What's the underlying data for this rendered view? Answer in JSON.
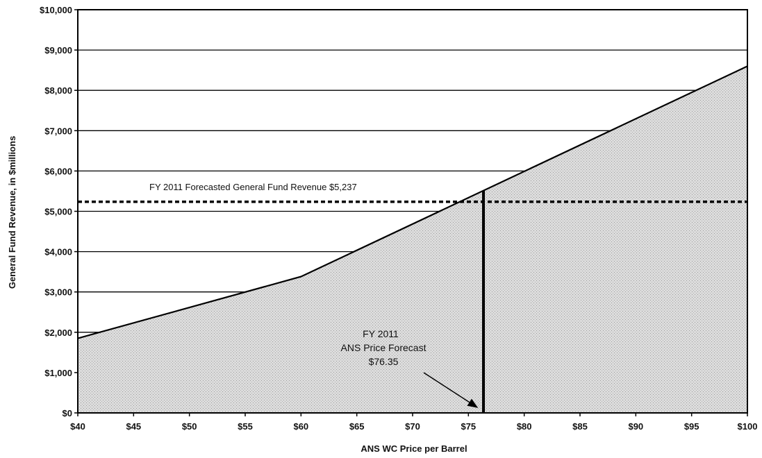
{
  "chart_data": {
    "type": "area",
    "title": "",
    "xlabel": "ANS WC Price per Barrel",
    "ylabel": "General Fund Revenue, in $millions",
    "xlim": [
      40,
      100
    ],
    "ylim": [
      0,
      10000
    ],
    "x_ticks": [
      40,
      45,
      50,
      55,
      60,
      65,
      70,
      75,
      80,
      85,
      90,
      95,
      100
    ],
    "x_tick_labels": [
      "$40",
      "$45",
      "$50",
      "$55",
      "$60",
      "$65",
      "$70",
      "$75",
      "$80",
      "$85",
      "$90",
      "$95",
      "$100"
    ],
    "y_ticks": [
      0,
      1000,
      2000,
      3000,
      4000,
      5000,
      6000,
      7000,
      8000,
      9000,
      10000
    ],
    "y_tick_labels": [
      "$0",
      "$1,000",
      "$2,000",
      "$3,000",
      "$4,000",
      "$5,000",
      "$6,000",
      "$7,000",
      "$8,000",
      "$9,000",
      "$10,000"
    ],
    "grid": true,
    "series": [
      {
        "x": [
          40,
          60,
          100
        ],
        "y": [
          1850,
          3380,
          8600
        ]
      }
    ],
    "forecast_revenue": {
      "label": "FY 2011 Forecasted General Fund Revenue  $5,237",
      "value": 5237
    },
    "forecast_price": {
      "label_lines": [
        "FY 2011",
        "ANS Price Forecast",
        "$76.35"
      ],
      "value": 76.35
    },
    "colors": {
      "fill": "#d6d6d6",
      "line": "#000000",
      "grid": "#000000"
    }
  }
}
